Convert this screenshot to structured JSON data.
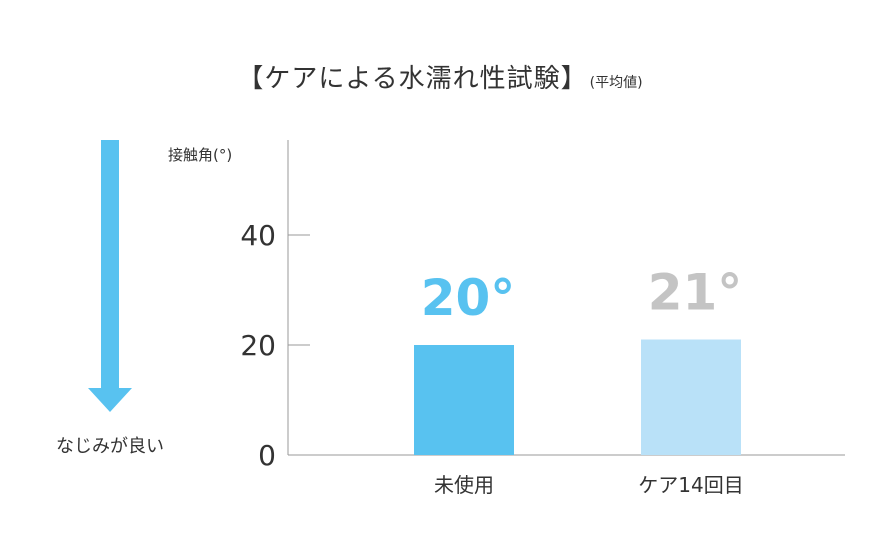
{
  "chart_data": {
    "type": "bar",
    "title": "【ケアによる水濡れ性試験】",
    "title_note": "(平均値)",
    "ylabel": "接触角(°)",
    "ylim": [
      0,
      55
    ],
    "yticks": [
      0,
      20,
      40
    ],
    "categories": [
      "未使用",
      "ケア14回目"
    ],
    "values": [
      20,
      21
    ],
    "value_labels": [
      "20°",
      "21°"
    ],
    "bar_colors": [
      "#58c2f0",
      "#b9e1f8"
    ],
    "value_label_colors": [
      "#58c2f0",
      "#c4c4c4"
    ],
    "grid": false
  },
  "arrow": {
    "label": "なじみが良い",
    "color": "#58c2f0"
  }
}
